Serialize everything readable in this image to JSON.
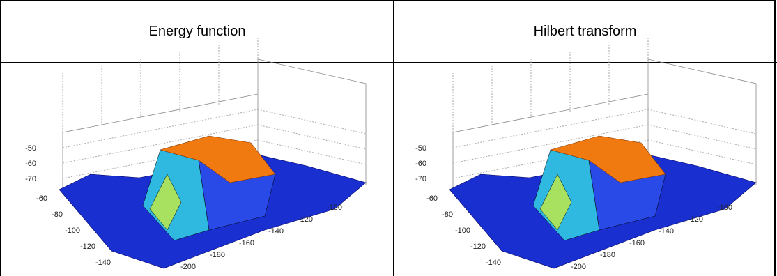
{
  "table": {
    "header": [
      "Energy function",
      "Hilbert transform"
    ],
    "plots": [
      {
        "z_ticks": [
          -50,
          -60,
          -70
        ],
        "y_ticks": [
          -60,
          -80,
          -100,
          -120,
          -140
        ],
        "x_ticks": [
          -200,
          -180,
          -160,
          -140,
          -120,
          -100
        ]
      },
      {
        "z_ticks": [
          -50,
          -60,
          -70
        ],
        "y_ticks": [
          -60,
          -80,
          -100,
          -120,
          -140
        ],
        "x_ticks": [
          -200,
          -180,
          -160,
          -140,
          -120,
          -100
        ]
      }
    ]
  }
}
